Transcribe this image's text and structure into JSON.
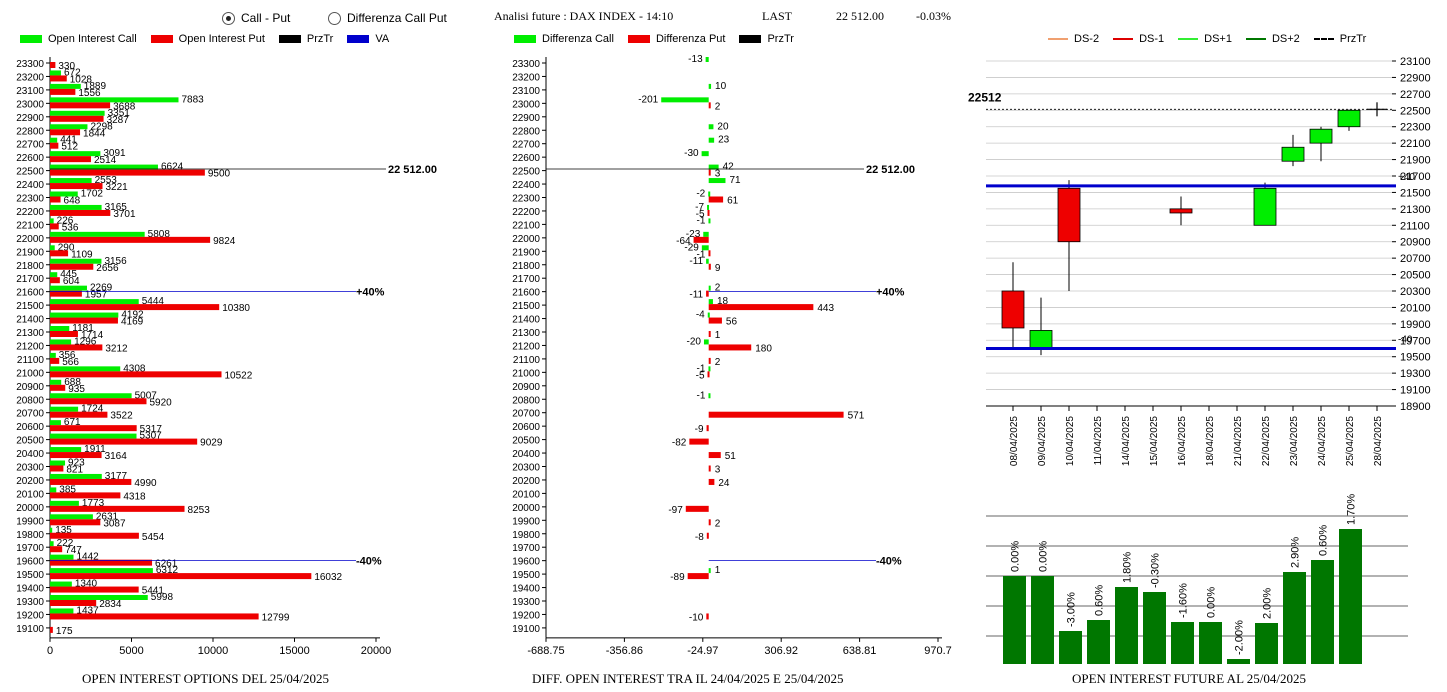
{
  "header": {
    "radio_call_put": "Call - Put",
    "radio_diff": "Differenza Call Put",
    "analisi": "Analisi future : DAX INDEX - 14:10",
    "last_label": "LAST",
    "last_value": "22 512.00",
    "last_change": "-0.03%"
  },
  "legend1": {
    "oi_call": "Open Interest Call",
    "oi_put": "Open Interest Put",
    "przTr": "PrzTr",
    "va": "VA"
  },
  "legend2": {
    "diff_call": "Differenza Call",
    "diff_put": "Differenza Put",
    "przTr": "PrzTr"
  },
  "legend3": {
    "ds_m2": "DS-2",
    "ds_m1": "DS-1",
    "ds_p1": "DS+1",
    "ds_p2": "DS+2",
    "przTr": "PrzTr"
  },
  "captions": {
    "chart1": "OPEN INTEREST OPTIONS DEL 25/04/2025",
    "chart2": "DIFF. OPEN INTEREST TRA IL 24/04/2025 E 25/04/2025",
    "chart3": "OPEN INTEREST FUTURE AL 25/04/2025"
  },
  "colors": {
    "green": "#00ee00",
    "red": "#ee0000",
    "blue": "#0000cc",
    "darkgreen": "#007700"
  },
  "chart_data": [
    {
      "type": "bar",
      "orientation": "horizontal",
      "categories": [
        23300,
        23200,
        23100,
        23000,
        22900,
        22800,
        22700,
        22600,
        22500,
        22400,
        22300,
        22200,
        22100,
        22000,
        21900,
        21800,
        21700,
        21600,
        21500,
        21400,
        21300,
        21200,
        21100,
        21000,
        20900,
        20800,
        20700,
        20600,
        20500,
        20400,
        20300,
        20200,
        20100,
        20000,
        19900,
        19800,
        19700,
        19600,
        19500,
        19400,
        19300,
        19200,
        19100
      ],
      "series": [
        {
          "name": "Open Interest Call",
          "values": [
            0,
            672,
            1889,
            7883,
            3351,
            2298,
            441,
            3091,
            6624,
            2553,
            1702,
            3165,
            226,
            5808,
            290,
            3156,
            445,
            2269,
            5444,
            4192,
            1181,
            1296,
            356,
            4308,
            688,
            5007,
            1724,
            671,
            5307,
            1911,
            923,
            3177,
            385,
            1773,
            2631,
            135,
            222,
            1442,
            6312,
            1340,
            5998,
            1437,
            0
          ]
        },
        {
          "name": "Open Interest Put",
          "values": [
            330,
            1028,
            1556,
            3688,
            3287,
            1844,
            512,
            2514,
            9500,
            3221,
            648,
            3701,
            536,
            9824,
            1109,
            2656,
            604,
            1957,
            10380,
            4169,
            1714,
            3212,
            566,
            10522,
            935,
            5920,
            3522,
            5317,
            9029,
            3164,
            821,
            4990,
            4318,
            8253,
            3087,
            5454,
            747,
            6261,
            16032,
            5441,
            2834,
            12799,
            175
          ]
        }
      ],
      "xlim": [
        0,
        20000
      ],
      "xticks": [
        "0",
        "5000",
        "10000",
        "15000",
        "20000"
      ],
      "annotations": [
        {
          "strike": 22512,
          "label": "22 512.00"
        },
        {
          "strike": 21600,
          "label": "+40%"
        },
        {
          "strike": 19600,
          "label": "-40%"
        }
      ]
    },
    {
      "type": "bar",
      "orientation": "horizontal",
      "categories": [
        23300,
        23200,
        23100,
        23000,
        22900,
        22800,
        22700,
        22600,
        22500,
        22400,
        22300,
        22200,
        22100,
        22000,
        21900,
        21800,
        21700,
        21600,
        21500,
        21400,
        21300,
        21200,
        21100,
        21000,
        20900,
        20800,
        20700,
        20600,
        20500,
        20400,
        20300,
        20200,
        20100,
        20000,
        19900,
        19800,
        19700,
        19600,
        19500,
        19400,
        19300,
        19200,
        19100
      ],
      "series": [
        {
          "name": "Differenza Call",
          "values": [
            -13,
            null,
            10,
            -201,
            null,
            20,
            23,
            -30,
            42,
            71,
            -2,
            -7,
            -1,
            -23,
            -29,
            -11,
            null,
            2,
            18,
            -4,
            null,
            -20,
            null,
            -1,
            null,
            -1,
            null,
            null,
            null,
            null,
            null,
            null,
            null,
            null,
            null,
            null,
            null,
            null,
            1,
            null,
            null,
            null,
            null
          ],
          "labels": [
            "-13",
            "",
            "10",
            "-201",
            "",
            "20",
            "23",
            "-30",
            "42",
            "71",
            "-2",
            "-7",
            "-1",
            "-23",
            "-29",
            "-11",
            "",
            "2",
            "18",
            "-4",
            "",
            "-20",
            "",
            "-1",
            "",
            "-1",
            "",
            "",
            "",
            "",
            "",
            "",
            "",
            "",
            "",
            "",
            "",
            "",
            "1",
            "",
            "",
            "",
            ""
          ]
        },
        {
          "name": "Differenza Put",
          "values": [
            null,
            null,
            null,
            2,
            null,
            null,
            null,
            null,
            3,
            null,
            61,
            -5,
            null,
            -64,
            -1,
            9,
            null,
            -11,
            443,
            56,
            1,
            180,
            2,
            -5,
            null,
            null,
            571,
            -9,
            -82,
            51,
            3,
            24,
            null,
            -97,
            2,
            -8,
            null,
            null,
            -89,
            null,
            null,
            -10,
            null
          ],
          "labels": [
            "",
            "",
            "",
            "2",
            "",
            "",
            "",
            "",
            "3",
            "",
            "61",
            "-5",
            "",
            "-64",
            "-1",
            "9",
            "",
            "-11",
            "443",
            "56",
            "1",
            "180",
            "2",
            "-5",
            "",
            "",
            "571",
            "-9",
            "-82",
            "51",
            "3",
            "24",
            "",
            "-97",
            "2",
            "-8",
            "",
            "",
            "-89",
            "",
            "",
            "-10",
            ""
          ]
        }
      ],
      "xlim": [
        -688.75,
        970.7
      ],
      "xticks": [
        "-688.75",
        "-356.86",
        "-24.97",
        "306.92",
        "638.81",
        "970.7"
      ],
      "annotations": [
        {
          "strike": 22512,
          "label": "22 512.00"
        },
        {
          "strike": 21600,
          "label": "+40%"
        },
        {
          "strike": 19600,
          "label": "-40%"
        }
      ]
    },
    {
      "type": "candlestick",
      "x": [
        "08/04/2025",
        "09/04/2025",
        "10/04/2025",
        "11/04/2025",
        "14/04/2025",
        "15/04/2025",
        "16/04/2025",
        "18/04/2025",
        "21/04/2025",
        "22/04/2025",
        "23/04/2025",
        "24/04/2025",
        "25/04/2025",
        "28/04/2025"
      ],
      "candles": [
        {
          "open": 20300,
          "close": 19850,
          "high": 20650,
          "low": 19600,
          "dir": "down"
        },
        {
          "open": 19600,
          "close": 19820,
          "high": 20220,
          "low": 19520,
          "dir": "up"
        },
        {
          "open": 21550,
          "close": 20900,
          "high": 21650,
          "low": 20300,
          "dir": "down"
        },
        null,
        null,
        null,
        {
          "open": 21300,
          "close": 21250,
          "high": 21450,
          "low": 21100,
          "dir": "down"
        },
        null,
        null,
        {
          "open": 21100,
          "close": 21550,
          "high": 21620,
          "low": 21100,
          "dir": "up"
        },
        {
          "open": 21880,
          "close": 22050,
          "high": 22200,
          "low": 21820,
          "dir": "up"
        },
        {
          "open": 22100,
          "close": 22270,
          "high": 22300,
          "low": 21880,
          "dir": "up"
        },
        {
          "open": 22300,
          "close": 22500,
          "high": 22510,
          "low": 22250,
          "dir": "up"
        },
        {
          "przTr": 22512
        }
      ],
      "ylim": [
        18900,
        23100
      ],
      "yticks": [
        "23100",
        "22900",
        "22700",
        "22500",
        "22300",
        "22100",
        "21900",
        "21700",
        "21500",
        "21300",
        "21100",
        "20900",
        "20700",
        "20500",
        "20300",
        "20100",
        "19900",
        "19700",
        "19500",
        "19300",
        "19100",
        "18900"
      ],
      "last_label": "22512",
      "levels": [
        {
          "value": 21580,
          "label": "+40"
        },
        {
          "value": 19600,
          "label": "-40"
        }
      ]
    },
    {
      "type": "bar",
      "categories": [
        "08/04/2025",
        "09/04/2025",
        "10/04/2025",
        "11/04/2025",
        "14/04/2025",
        "15/04/2025",
        "16/04/2025",
        "18/04/2025",
        "21/04/2025",
        "22/04/2025",
        "23/04/2025",
        "24/04/2025",
        "25/04/2025"
      ],
      "values": [
        0.0,
        0.0,
        -3.0,
        0.6,
        1.8,
        -0.3,
        -1.6,
        0.0,
        -2.0,
        2.0,
        2.9,
        0.6,
        1.7
      ],
      "labels": [
        "0.00%",
        "0.00%",
        "-3.00%",
        "0.60%",
        "1.80%",
        "-0.30%",
        "-1.60%",
        "0.00%",
        "-2.00%",
        "2.00%",
        "2.90%",
        "0.60%",
        "1.70%"
      ],
      "heights": [
        88,
        88,
        33,
        44,
        77,
        72,
        42,
        42,
        5,
        41,
        92,
        104,
        135
      ]
    }
  ]
}
